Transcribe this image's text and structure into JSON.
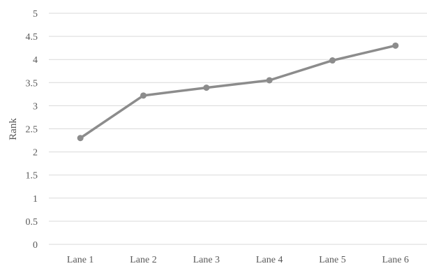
{
  "chart_data": {
    "type": "line",
    "title": "",
    "xlabel": "",
    "ylabel": "Rank",
    "categories": [
      "Lane 1",
      "Lane 2",
      "Lane 3",
      "Lane 4",
      "Lane 5",
      "Lane 6"
    ],
    "series": [
      {
        "values": [
          2.3,
          3.22,
          3.39,
          3.55,
          3.98,
          4.3
        ],
        "color": "#8c8c8c"
      }
    ],
    "ylim": [
      0,
      5
    ],
    "yticks": [
      "0",
      "0.5",
      "1",
      "1.5",
      "2",
      "2.5",
      "3",
      "3.5",
      "4",
      "4.5",
      "5"
    ],
    "grid": true,
    "legend": "none"
  }
}
